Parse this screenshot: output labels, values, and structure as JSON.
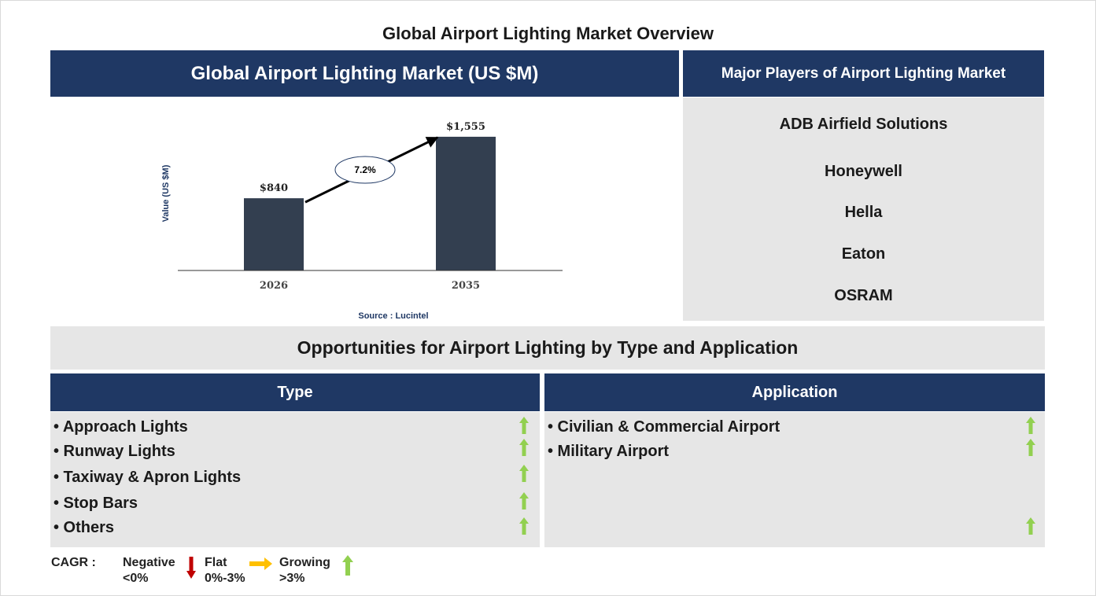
{
  "title": "Global Airport Lighting Market Overview",
  "chart_panel": {
    "header": "Global Airport Lighting Market (US $M)",
    "source": "Source : Lucintel"
  },
  "chart_data": {
    "type": "bar",
    "categories": [
      "2026",
      "2035"
    ],
    "values": [
      840,
      1555
    ],
    "value_labels": [
      "$840",
      "$1,555"
    ],
    "ylabel": "Value (US $M)",
    "ylim": [
      0,
      1600
    ],
    "cagr_label": "7.2%",
    "colors": {
      "bar": "#333f50"
    }
  },
  "players": {
    "header": "Major Players of Airport Lighting Market",
    "names": [
      "ADB Airfield Solutions",
      "Honeywell",
      "Hella",
      "Eaton",
      "OSRAM"
    ]
  },
  "opportunities": {
    "header": "Opportunities for Airport Lighting by Type and Application",
    "type": {
      "header": "Type",
      "items": [
        {
          "label": "• Approach Lights",
          "trend": "growing"
        },
        {
          "label": "• Runway Lights",
          "trend": "growing"
        },
        {
          "label": "• Taxiway & Apron Lights",
          "trend": "growing"
        },
        {
          "label": "• Stop Bars",
          "trend": "growing"
        },
        {
          "label": "• Others",
          "trend": "growing"
        }
      ]
    },
    "application": {
      "header": "Application",
      "items": [
        {
          "label": "• Civilian & Commercial Airport",
          "trend": "growing"
        },
        {
          "label": "• Military Airport",
          "trend": "growing"
        }
      ],
      "extra_arrow_trend": "growing"
    }
  },
  "legend": {
    "cagr": "CAGR :",
    "negative_label": "Negative",
    "negative_range": "<0%",
    "flat_label": "Flat",
    "flat_range": "0%-3%",
    "growing_label": "Growing",
    "growing_range": ">3%",
    "colors": {
      "negative": "#c00000",
      "flat": "#ffc000",
      "growing": "#92d050"
    }
  },
  "colors": {
    "navy": "#1f3864",
    "panel_grey": "#e6e6e6"
  }
}
